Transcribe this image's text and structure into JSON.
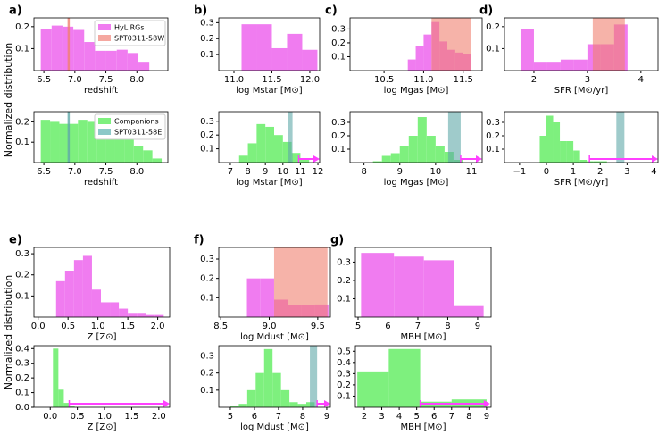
{
  "figure_ylabels": [
    "Normalized distribution",
    "Normalized distribution"
  ],
  "chart_data": [
    {
      "type": "histogram",
      "panel": "a)",
      "xlabel": "redshift",
      "color": "#f07cf0",
      "bins": [
        6.45,
        6.625,
        6.8,
        6.975,
        7.15,
        7.325,
        7.5,
        7.675,
        7.85,
        8.025,
        8.2
      ],
      "counts": [
        0.19,
        0.205,
        0.2,
        0.185,
        0.13,
        0.09,
        0.09,
        0.095,
        0.08,
        0.04
      ],
      "xlim": [
        6.34,
        8.5
      ],
      "ylim": [
        0,
        0.24
      ],
      "xticks": [
        6.5,
        {
          "value": 7,
          "label": "7.0"
        },
        7.5,
        {
          "value": 8,
          "label": "8.0"
        }
      ],
      "yticks": [
        0.1,
        0.2
      ],
      "vline": 6.9,
      "vline_color": "#f08070",
      "legend": [
        {
          "label": "HyLIRGs",
          "color": "#f07cf0"
        },
        {
          "label": "SPT0311-58W",
          "color": "#f5a8a0"
        }
      ]
    },
    {
      "type": "histogram",
      "xlabel": "redshift",
      "color": "#7ef07e",
      "bins": [
        6.45,
        6.6,
        6.75,
        6.9,
        7.05,
        7.2,
        7.35,
        7.5,
        7.65,
        7.8,
        7.95,
        8.1,
        8.25,
        8.4
      ],
      "counts": [
        0.21,
        0.2,
        0.19,
        0.19,
        0.21,
        0.2,
        0.15,
        0.14,
        0.13,
        0.13,
        0.08,
        0.06,
        0.02
      ],
      "xlim": [
        6.34,
        8.5
      ],
      "ylim": [
        0,
        0.25
      ],
      "xticks": [
        6.5,
        {
          "value": 7,
          "label": "7.0"
        },
        7.5,
        {
          "value": 8,
          "label": "8.0"
        }
      ],
      "yticks": [
        0.1,
        0.2
      ],
      "vline": 6.9,
      "vline_color": "#5fa8a8",
      "legend": [
        {
          "label": "Companions",
          "color": "#7ef07e"
        },
        {
          "label": "SPT0311-58E",
          "color": "#8cc8c8"
        }
      ]
    },
    {
      "type": "histogram",
      "panel": "b)",
      "xlabel": "log Mstar [M⊙]",
      "color": "#f07cf0",
      "bins": [
        11.1,
        11.3,
        11.5,
        11.7,
        11.9,
        12.1
      ],
      "counts": [
        0.29,
        0.29,
        0.14,
        0.23,
        0.13
      ],
      "xlim": [
        10.8,
        12.13
      ],
      "ylim": [
        0,
        0.33
      ],
      "xticks": [
        {
          "value": 11,
          "label": "11.0"
        },
        11.5,
        {
          "value": 12,
          "label": "12.0"
        }
      ],
      "yticks": [
        0.1,
        0.2,
        0.3
      ]
    },
    {
      "type": "histogram",
      "xlabel": "log Mstar [M⊙]",
      "color": "#7ef07e",
      "bins": [
        7.5,
        8,
        8.5,
        9,
        9.5,
        10,
        10.5,
        11,
        11.5
      ],
      "counts": [
        0.05,
        0.14,
        0.28,
        0.26,
        0.2,
        0.15,
        0.07,
        0.02
      ],
      "xlim": [
        6.34,
        12.1
      ],
      "ylim": [
        0,
        0.37
      ],
      "xticks": [
        7,
        8,
        9,
        10,
        11,
        12
      ],
      "yticks": [
        0.1,
        0.2,
        0.3
      ],
      "span": [
        10.3,
        10.55
      ],
      "span_color": "#5fa8a8",
      "arrow": [
        10.9,
        12.1
      ],
      "arrow_color": "#ff40ff"
    },
    {
      "type": "histogram",
      "panel": "c)",
      "xlabel": "log Mgas [M⊙]",
      "color": "#f07cf0",
      "bins": [
        10.8,
        10.9,
        11.0,
        11.1,
        11.2,
        11.3,
        11.4,
        11.5,
        11.6
      ],
      "counts": [
        0.08,
        0.18,
        0.26,
        0.35,
        0.21,
        0.15,
        0.13,
        0.12
      ],
      "xlim": [
        10.07,
        11.74
      ],
      "ylim": [
        0,
        0.38
      ],
      "xticks": [
        10.5,
        {
          "value": 11,
          "label": "11.0"
        },
        11.5
      ],
      "yticks": [
        0.1,
        0.2,
        0.3
      ],
      "span": [
        11.1,
        11.6
      ],
      "span_color": "#f08070"
    },
    {
      "type": "histogram",
      "xlabel": "log Mgas [M⊙]",
      "color": "#7ef07e",
      "bins": [
        8.25,
        8.5,
        8.75,
        9,
        9.25,
        9.5,
        9.75,
        10,
        10.25,
        10.5,
        10.75
      ],
      "counts": [
        0.01,
        0.05,
        0.07,
        0.12,
        0.2,
        0.34,
        0.2,
        0.12,
        0.08,
        0.02
      ],
      "xlim": [
        7.61,
        11.3
      ],
      "ylim": [
        0,
        0.38
      ],
      "xticks": [
        8,
        9,
        10,
        11
      ],
      "yticks": [
        0.1,
        0.2,
        0.3
      ],
      "span": [
        10.35,
        10.7
      ],
      "span_color": "#5fa8a8",
      "arrow": [
        10.7,
        11.3
      ],
      "arrow_color": "#ff40ff"
    },
    {
      "type": "histogram",
      "panel": "d)",
      "xlabel": "SFR [M⊙/yr]",
      "color": "#f07cf0",
      "bins": [
        1.75,
        2,
        2.25,
        2.5,
        2.75,
        3,
        3.25,
        3.5,
        3.75
      ],
      "counts": [
        0.19,
        0.04,
        0.04,
        0.05,
        0.05,
        0.12,
        0.12,
        0.21
      ],
      "xlim": [
        1.45,
        4.32
      ],
      "ylim": [
        0,
        0.24
      ],
      "xticks": [
        2,
        3,
        4
      ],
      "yticks": [
        0.1,
        0.2
      ],
      "span": [
        3.1,
        3.7
      ],
      "span_color": "#f08070"
    },
    {
      "type": "histogram",
      "xlabel": "SFR [M⊙/yr]",
      "color": "#7ef07e",
      "bins": [
        -0.25,
        0,
        0.25,
        0.5,
        0.75,
        1,
        1.25,
        1.5,
        1.75,
        2,
        2.25
      ],
      "counts": [
        0.2,
        0.35,
        0.3,
        0.16,
        0.16,
        0.09,
        0.02,
        0.01,
        0.01,
        0.01
      ],
      "xlim": [
        -1.56,
        4.15
      ],
      "ylim": [
        0,
        0.38
      ],
      "xticks": [
        {
          "value": -1,
          "label": "−1"
        },
        0,
        1,
        2,
        3,
        4
      ],
      "yticks": [
        0.1,
        0.2,
        0.3
      ],
      "span": [
        2.6,
        2.9
      ],
      "span_color": "#5fa8a8",
      "arrow": [
        1.6,
        4.15
      ],
      "arrow_color": "#ff40ff"
    },
    {
      "type": "histogram",
      "panel": "e)",
      "xlabel": "Z [Z⊙]",
      "color": "#f07cf0",
      "bins": [
        0.3,
        0.45,
        0.6,
        0.75,
        0.9,
        1.05,
        1.2,
        1.35,
        1.5,
        1.65,
        1.8,
        1.95,
        2.1
      ],
      "counts": [
        0.17,
        0.22,
        0.27,
        0.29,
        0.13,
        0.07,
        0.07,
        0.04,
        0.02,
        0.02,
        0.01,
        0.01
      ],
      "xlim": [
        -0.07,
        2.2
      ],
      "ylim": [
        0,
        0.33
      ],
      "xticks": [
        {
          "value": 0,
          "label": "0.0"
        },
        0.5,
        {
          "value": 1,
          "label": "1.0"
        },
        1.5,
        {
          "value": 2,
          "label": "2.0"
        }
      ],
      "yticks": [
        0.1,
        0.2,
        0.3
      ]
    },
    {
      "type": "histogram",
      "xlabel": "Z [Z⊙]",
      "color": "#7ef07e",
      "bins": [
        0.05,
        0.15,
        0.25,
        0.35,
        0.45
      ],
      "counts": [
        0.4,
        0.12,
        0.03,
        0.01
      ],
      "xlim": [
        -0.3,
        2.2
      ],
      "ylim": [
        0,
        0.42
      ],
      "xticks": [
        {
          "value": 0,
          "label": "0.0"
        },
        0.5,
        {
          "value": 1,
          "label": "1.0"
        },
        1.5,
        {
          "value": 2,
          "label": "2.0"
        }
      ],
      "yticks": [
        {
          "value": 0,
          "label": "0.0"
        },
        0.1,
        0.2,
        0.3,
        0.4
      ],
      "arrow": [
        0.35,
        2.2
      ],
      "arrow_color": "#ff40ff"
    },
    {
      "type": "histogram",
      "panel": "f)",
      "xlabel": "log Mdust [M⊙]",
      "color": "#f07cf0",
      "bins": [
        8.77,
        8.91,
        9.05,
        9.19,
        9.33,
        9.47,
        9.61
      ],
      "counts": [
        0.2,
        0.2,
        0.09,
        0.06,
        0.06,
        0.065
      ],
      "xlim": [
        8.48,
        9.63
      ],
      "ylim": [
        0,
        0.36
      ],
      "xticks": [
        8.5,
        {
          "value": 9,
          "label": "9.0"
        },
        9.5
      ],
      "yticks": [
        0.1,
        0.2,
        0.3
      ],
      "span": [
        9.05,
        9.6
      ],
      "span_color": "#f08070"
    },
    {
      "type": "histogram",
      "xlabel": "log Mdust [M⊙]",
      "color": "#7ef07e",
      "bins": [
        5,
        5.35,
        5.7,
        6.05,
        6.4,
        6.75,
        7.1,
        7.45,
        7.8,
        8.15,
        8.5
      ],
      "counts": [
        0.01,
        0.02,
        0.1,
        0.2,
        0.34,
        0.2,
        0.1,
        0.03,
        0.02,
        0.03
      ],
      "xlim": [
        4.52,
        9.15
      ],
      "ylim": [
        0,
        0.36
      ],
      "xticks": [
        5,
        6,
        7,
        8,
        9
      ],
      "yticks": [
        0.1,
        0.2,
        0.3
      ],
      "span": [
        8.3,
        8.6
      ],
      "span_color": "#5fa8a8",
      "arrow": [
        8.6,
        9.15
      ],
      "arrow_color": "#ff40ff"
    },
    {
      "type": "histogram",
      "panel": "g)",
      "xlabel": "MBH [M⊙]",
      "color": "#f07cf0",
      "bins": [
        5.1,
        6.2,
        7.2,
        8.2,
        9.2
      ],
      "counts": [
        0.35,
        0.33,
        0.31,
        0.06
      ],
      "xlim": [
        4.91,
        9.45
      ],
      "ylim": [
        0,
        0.38
      ],
      "xticks": [
        5,
        6,
        7,
        8,
        9
      ],
      "yticks": [
        0.1,
        0.2,
        0.3
      ]
    },
    {
      "type": "histogram",
      "xlabel": "MBH [M⊙]",
      "color": "#7ef07e",
      "bins": [
        1.6,
        3.4,
        5.2,
        7,
        9
      ],
      "counts": [
        0.32,
        0.52,
        0.05,
        0.07
      ],
      "xlim": [
        1.49,
        9.26
      ],
      "ylim": [
        0,
        0.55
      ],
      "xticks": [
        2,
        3,
        4,
        5,
        6,
        7,
        8,
        9
      ],
      "yticks": [
        0.1,
        0.2,
        0.3,
        0.4,
        0.5
      ],
      "arrow": [
        5.2,
        9.2
      ],
      "arrow_color": "#ff40ff"
    }
  ]
}
